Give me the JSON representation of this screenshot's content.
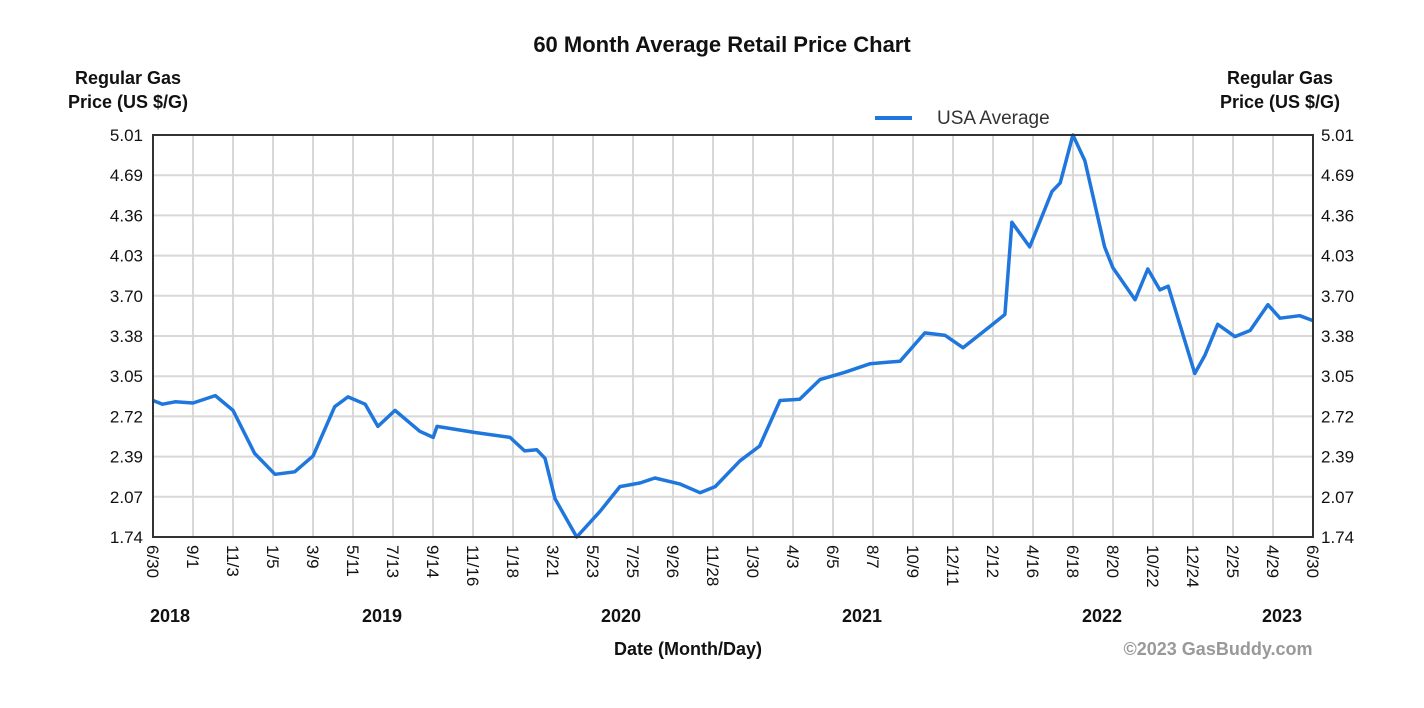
{
  "chart_data": {
    "type": "line",
    "title": "60 Month Average Retail Price Chart",
    "ylabel_left": [
      "Regular Gas",
      "Price (US $/G)"
    ],
    "ylabel_right": [
      "Regular Gas",
      "Price (US $/G)"
    ],
    "xlabel": "Date (Month/Day)",
    "credit": "©2023 GasBuddy.com",
    "ylim": [
      1.74,
      5.01
    ],
    "xlim": [
      "2018-06-30",
      "2023-06-30"
    ],
    "y_ticks": [
      "5.01",
      "4.69",
      "4.36",
      "4.03",
      "3.70",
      "3.38",
      "3.05",
      "2.72",
      "2.39",
      "2.07",
      "1.74"
    ],
    "x_ticks": [
      "6/30",
      "9/1",
      "11/3",
      "1/5",
      "3/9",
      "5/11",
      "7/13",
      "9/14",
      "11/16",
      "1/18",
      "3/21",
      "5/23",
      "7/25",
      "9/26",
      "11/28",
      "1/30",
      "4/3",
      "6/5",
      "8/7",
      "10/9",
      "12/11",
      "2/12",
      "4/16",
      "6/18",
      "8/20",
      "10/22",
      "12/24",
      "2/25",
      "4/29",
      "6/30"
    ],
    "year_labels": [
      "2018",
      "2019",
      "2020",
      "2021",
      "2022",
      "2023"
    ],
    "grid": true,
    "legend_position": "top-right",
    "line_color": "#1f77dd",
    "series": [
      {
        "name": "USA Average",
        "x": [
          "2018-06-30",
          "2018-07-15",
          "2018-08-04",
          "2018-09-01",
          "2018-10-06",
          "2018-11-03",
          "2018-12-07",
          "2019-01-08",
          "2019-02-08",
          "2019-03-09",
          "2019-04-12",
          "2019-05-03",
          "2019-05-30",
          "2019-06-19",
          "2019-07-16",
          "2019-08-24",
          "2019-09-14",
          "2019-09-20",
          "2019-11-19",
          "2020-01-13",
          "2020-02-05",
          "2020-02-24",
          "2020-03-08",
          "2020-03-24",
          "2020-04-27",
          "2020-06-03",
          "2020-07-04",
          "2020-08-05",
          "2020-08-28",
          "2020-10-07",
          "2020-11-07",
          "2020-12-01",
          "2021-01-09",
          "2021-02-09",
          "2021-03-13",
          "2021-04-13",
          "2021-05-15",
          "2021-06-23",
          "2021-08-02",
          "2021-09-18",
          "2021-10-27",
          "2021-11-28",
          "2021-12-26",
          "2022-02-06",
          "2022-03-02",
          "2022-03-13",
          "2022-04-10",
          "2022-05-15",
          "2022-05-28",
          "2022-06-17",
          "2022-07-06",
          "2022-08-06",
          "2022-08-19",
          "2022-09-23",
          "2022-10-13",
          "2022-11-01",
          "2022-11-14",
          "2022-12-26",
          "2023-01-11",
          "2023-01-31",
          "2023-02-27",
          "2023-03-23",
          "2023-04-20",
          "2023-05-09",
          "2023-06-09",
          "2023-06-30"
        ],
        "y": [
          2.85,
          2.82,
          2.84,
          2.83,
          2.89,
          2.77,
          2.42,
          2.25,
          2.27,
          2.4,
          2.8,
          2.88,
          2.82,
          2.64,
          2.77,
          2.6,
          2.55,
          2.64,
          2.59,
          2.55,
          2.44,
          2.45,
          2.38,
          2.05,
          1.74,
          1.95,
          2.15,
          2.18,
          2.22,
          2.17,
          2.1,
          2.15,
          2.36,
          2.48,
          2.85,
          2.86,
          3.02,
          3.08,
          3.15,
          3.17,
          3.4,
          3.38,
          3.28,
          3.45,
          3.55,
          4.3,
          4.1,
          4.55,
          4.62,
          5.01,
          4.8,
          4.1,
          3.93,
          3.67,
          3.92,
          3.75,
          3.78,
          3.07,
          3.22,
          3.47,
          3.37,
          3.42,
          3.63,
          3.52,
          3.54,
          3.5
        ]
      }
    ]
  }
}
